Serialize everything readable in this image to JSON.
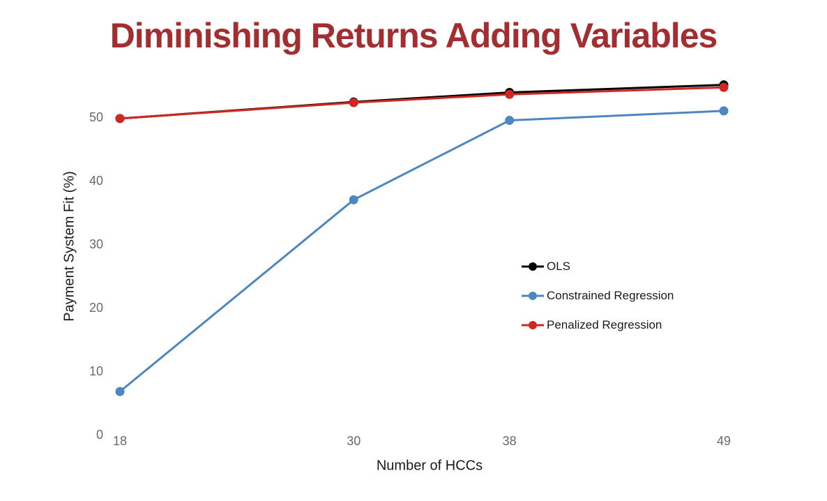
{
  "title": "Diminishing Returns Adding Variables",
  "colors": {
    "title": "#A32E31",
    "tick_label": "#6a6a6a",
    "axis_label": "#1a1a1a",
    "ols": "#000000",
    "constrained": "#4E86BE",
    "penalized": "#CF2822",
    "background": "#ffffff"
  },
  "chart_data": {
    "type": "line",
    "title": "Diminishing Returns Adding Variables",
    "xlabel": "Number of HCCs",
    "ylabel": "Payment System Fit (%)",
    "x": [
      18,
      30,
      38,
      49
    ],
    "yticks": [
      0,
      10,
      20,
      30,
      40,
      50
    ],
    "ylim": [
      0,
      58
    ],
    "xlim": [
      16,
      53
    ],
    "grid": false,
    "axis_lines": false,
    "marker": "circle",
    "legend_position": "center-right",
    "series": [
      {
        "name": "OLS",
        "color": "#000000",
        "values": [
          49.8,
          52.4,
          53.9,
          55.1
        ]
      },
      {
        "name": "Constrained Regression",
        "color": "#4E86BE",
        "values": [
          6.8,
          37.0,
          49.5,
          51.0
        ]
      },
      {
        "name": "Penalized Regression",
        "color": "#CF2822",
        "values": [
          49.8,
          52.3,
          53.6,
          54.7
        ]
      }
    ]
  }
}
